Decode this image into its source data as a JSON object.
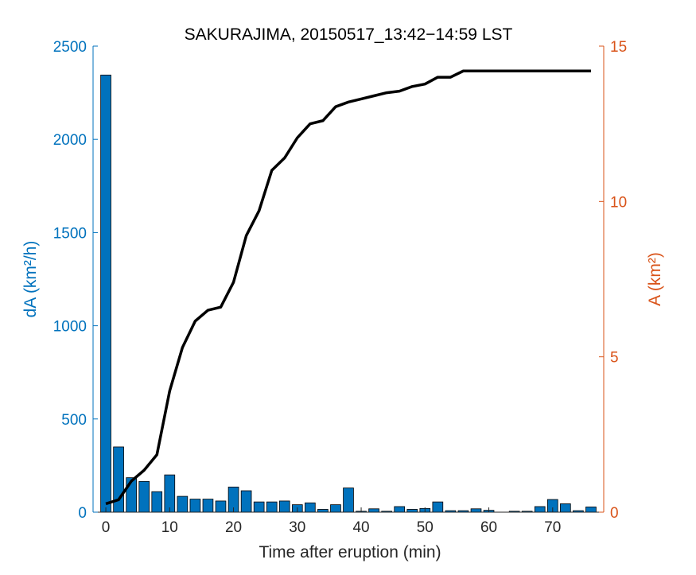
{
  "chart_data": {
    "type": "bar+line",
    "title": "SAKURAJIMA, 20150517_13:42−14:59 LST",
    "xlabel": "Time after eruption (min)",
    "ylabel_left": "dA (km²/h)",
    "ylabel_right": "A (km²)",
    "xlim": [
      -2,
      78
    ],
    "ylim_left": [
      0,
      2500
    ],
    "ylim_right": [
      0,
      15
    ],
    "x_ticks": [
      0,
      10,
      20,
      30,
      40,
      50,
      60,
      70
    ],
    "y_left_ticks": [
      0,
      500,
      1000,
      1500,
      2000,
      2500
    ],
    "y_right_ticks": [
      0,
      5,
      10,
      15
    ],
    "grid": false,
    "legend": "none",
    "colors": {
      "bars": "#0072BD",
      "left_axis": "#0072BD",
      "right_axis": "#D95319",
      "line": "#000000"
    },
    "series": [
      {
        "kind": "bar",
        "axis": "left",
        "x": [
          0,
          2,
          4,
          6,
          8,
          10,
          12,
          14,
          16,
          18,
          20,
          22,
          24,
          26,
          28,
          30,
          32,
          34,
          36,
          38,
          40,
          42,
          44,
          46,
          48,
          50,
          52,
          54,
          56,
          58,
          60,
          62,
          64,
          66,
          68,
          70,
          72,
          74,
          76
        ],
        "values": [
          2345,
          350,
          185,
          165,
          110,
          200,
          85,
          70,
          70,
          60,
          135,
          115,
          55,
          55,
          60,
          40,
          50,
          15,
          40,
          130,
          5,
          18,
          5,
          30,
          15,
          20,
          55,
          8,
          8,
          18,
          10,
          0,
          5,
          5,
          30,
          68,
          45,
          8,
          28
        ]
      },
      {
        "kind": "line",
        "axis": "right",
        "x": [
          0,
          2,
          4,
          6,
          8,
          10,
          12,
          14,
          16,
          18,
          20,
          22,
          24,
          26,
          28,
          30,
          32,
          34,
          36,
          38,
          40,
          42,
          44,
          46,
          48,
          50,
          52,
          54,
          56,
          58,
          60,
          62,
          64,
          66,
          68,
          70,
          72,
          74,
          76
        ],
        "values": [
          0.27,
          0.4,
          1.0,
          1.35,
          1.85,
          3.9,
          5.3,
          6.15,
          6.5,
          6.6,
          7.4,
          8.9,
          9.7,
          11.0,
          11.4,
          12.05,
          12.5,
          12.6,
          13.05,
          13.2,
          13.3,
          13.4,
          13.5,
          13.55,
          13.7,
          13.78,
          14.0,
          14.0,
          14.2,
          14.2,
          14.2,
          14.2,
          14.2,
          14.2,
          14.2,
          14.2,
          14.2,
          14.2,
          14.2
        ]
      }
    ]
  }
}
